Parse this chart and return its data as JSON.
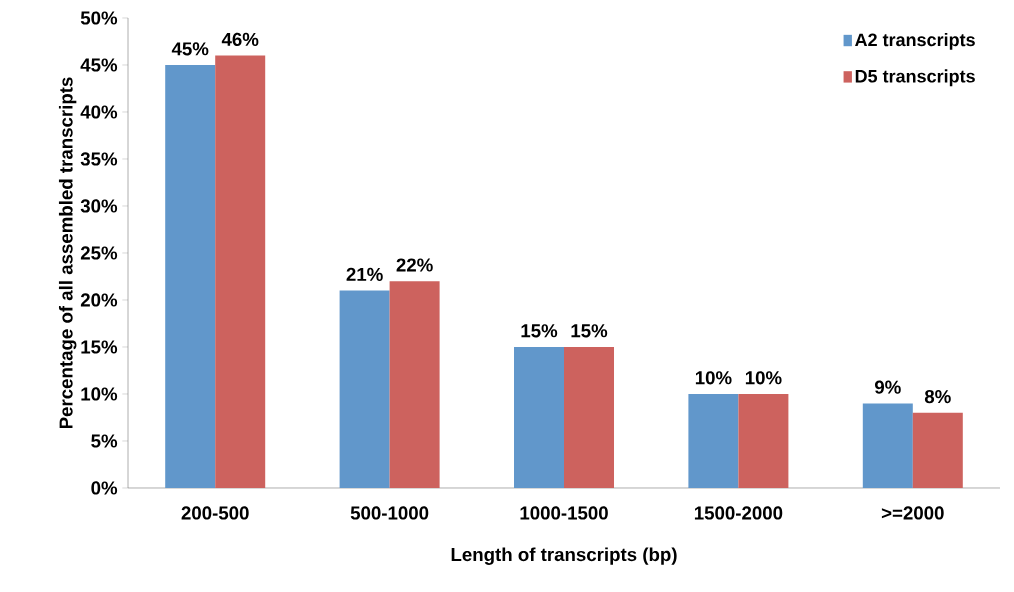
{
  "chart_data": {
    "type": "bar",
    "xlabel": "Length of transcripts (bp)",
    "ylabel": "Percentage of all assembled transcripts",
    "categories": [
      "200-500",
      "500-1000",
      "1000-1500",
      "1500-2000",
      ">=2000"
    ],
    "series": [
      {
        "name": "A2 transcripts",
        "color": "#6197cb",
        "values": [
          45,
          21,
          15,
          10,
          9
        ],
        "value_labels": [
          "45%",
          "21%",
          "15%",
          "10%",
          "9%"
        ]
      },
      {
        "name": "D5 transcripts",
        "color": "#cd625e",
        "values": [
          46,
          22,
          15,
          10,
          8
        ],
        "value_labels": [
          "46%",
          "22%",
          "15%",
          "10%",
          "8%"
        ]
      }
    ],
    "ylim": [
      0,
      50
    ],
    "yticks": [
      {
        "value": 0,
        "label": "0%"
      },
      {
        "value": 5,
        "label": "5%"
      },
      {
        "value": 10,
        "label": "10%"
      },
      {
        "value": 15,
        "label": "15%"
      },
      {
        "value": 20,
        "label": "20%"
      },
      {
        "value": 25,
        "label": "25%"
      },
      {
        "value": 30,
        "label": "30%"
      },
      {
        "value": 35,
        "label": "35%"
      },
      {
        "value": 40,
        "label": "40%"
      },
      {
        "value": 45,
        "label": "45%"
      },
      {
        "value": 50,
        "label": "50%"
      }
    ],
    "grid": false,
    "legend": "top right"
  }
}
